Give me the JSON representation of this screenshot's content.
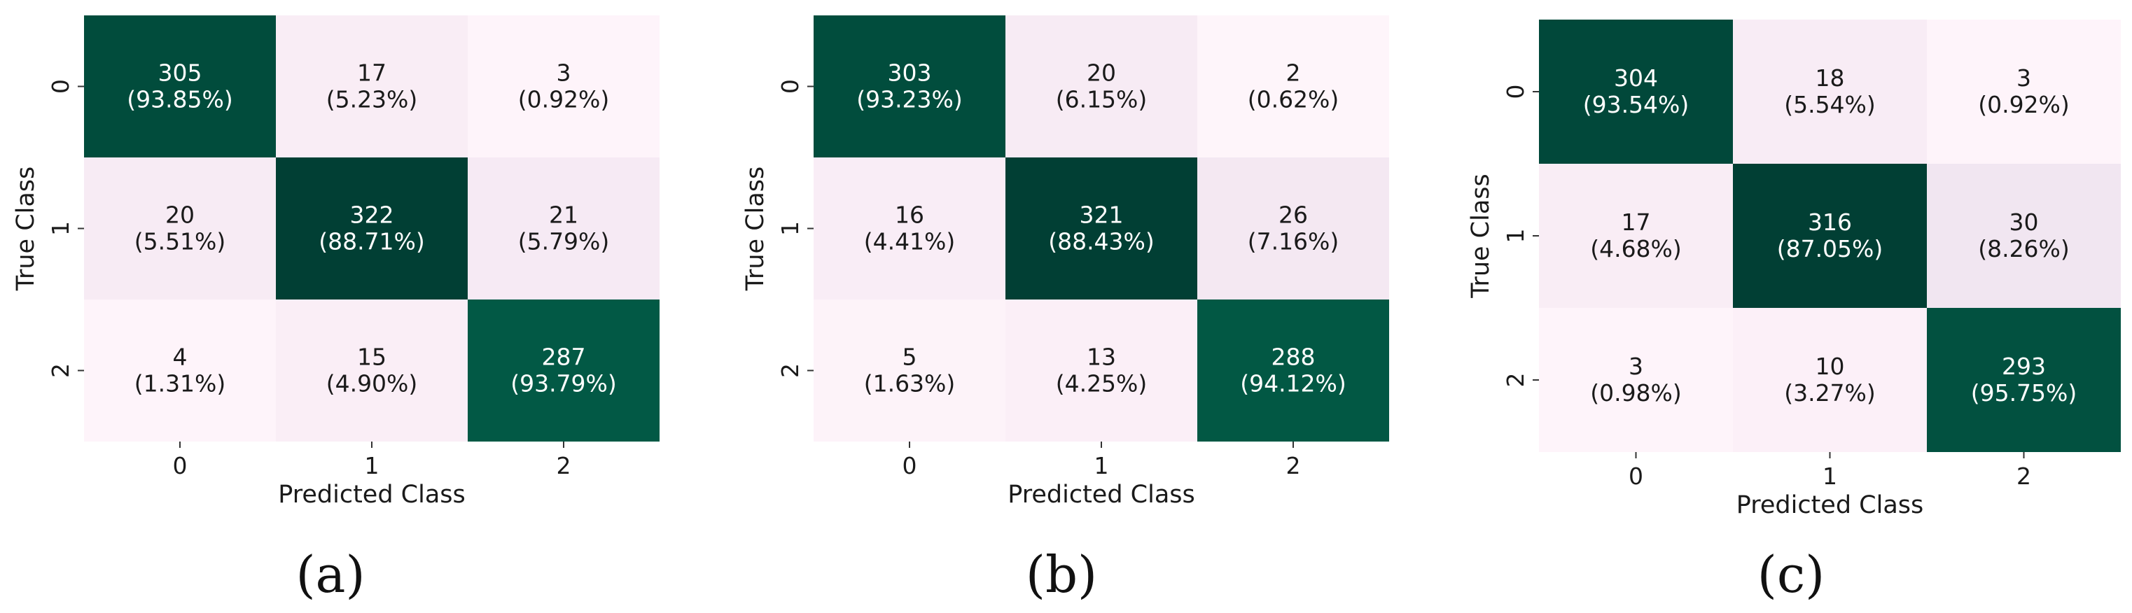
{
  "chart_data": [
    {
      "type": "heatmap",
      "panel_label": "(a)",
      "xlabel": "Predicted Class",
      "ylabel": "True Class",
      "x_ticks": [
        "0",
        "1",
        "2"
      ],
      "y_ticks": [
        "0",
        "1",
        "2"
      ],
      "colormap": "PuBuGn (white-pink to dark green)",
      "colorbar": false,
      "counts": [
        [
          305,
          17,
          3
        ],
        [
          20,
          322,
          21
        ],
        [
          4,
          15,
          287
        ]
      ],
      "percentages": [
        [
          "93.85%",
          "5.23%",
          "0.92%"
        ],
        [
          "5.51%",
          "88.71%",
          "5.79%"
        ],
        [
          "1.31%",
          "4.90%",
          "93.79%"
        ]
      ]
    },
    {
      "type": "heatmap",
      "panel_label": "(b)",
      "xlabel": "Predicted Class",
      "ylabel": "True Class",
      "x_ticks": [
        "0",
        "1",
        "2"
      ],
      "y_ticks": [
        "0",
        "1",
        "2"
      ],
      "colormap": "PuBuGn (white-pink to dark green)",
      "colorbar": false,
      "counts": [
        [
          303,
          20,
          2
        ],
        [
          16,
          321,
          26
        ],
        [
          5,
          13,
          288
        ]
      ],
      "percentages": [
        [
          "93.23%",
          "6.15%",
          "0.62%"
        ],
        [
          "4.41%",
          "88.43%",
          "7.16%"
        ],
        [
          "1.63%",
          "4.25%",
          "94.12%"
        ]
      ]
    },
    {
      "type": "heatmap",
      "panel_label": "(c)",
      "xlabel": "Predicted Class",
      "ylabel": "True Class",
      "x_ticks": [
        "0",
        "1",
        "2"
      ],
      "y_ticks": [
        "0",
        "1",
        "2"
      ],
      "colormap": "PuBuGn (white-pink to dark green)",
      "colorbar": false,
      "counts": [
        [
          304,
          18,
          3
        ],
        [
          17,
          316,
          30
        ],
        [
          3,
          10,
          293
        ]
      ],
      "percentages": [
        [
          "93.54%",
          "5.54%",
          "0.92%"
        ],
        [
          "4.68%",
          "87.05%",
          "8.26%"
        ],
        [
          "0.98%",
          "3.27%",
          "95.75%"
        ]
      ]
    }
  ],
  "colors": {
    "low": "#fff6fb",
    "mid": "#f3e8f3",
    "high": "#03453a",
    "text_light": "#ffffff",
    "text_dark": "#1a1a1a"
  }
}
